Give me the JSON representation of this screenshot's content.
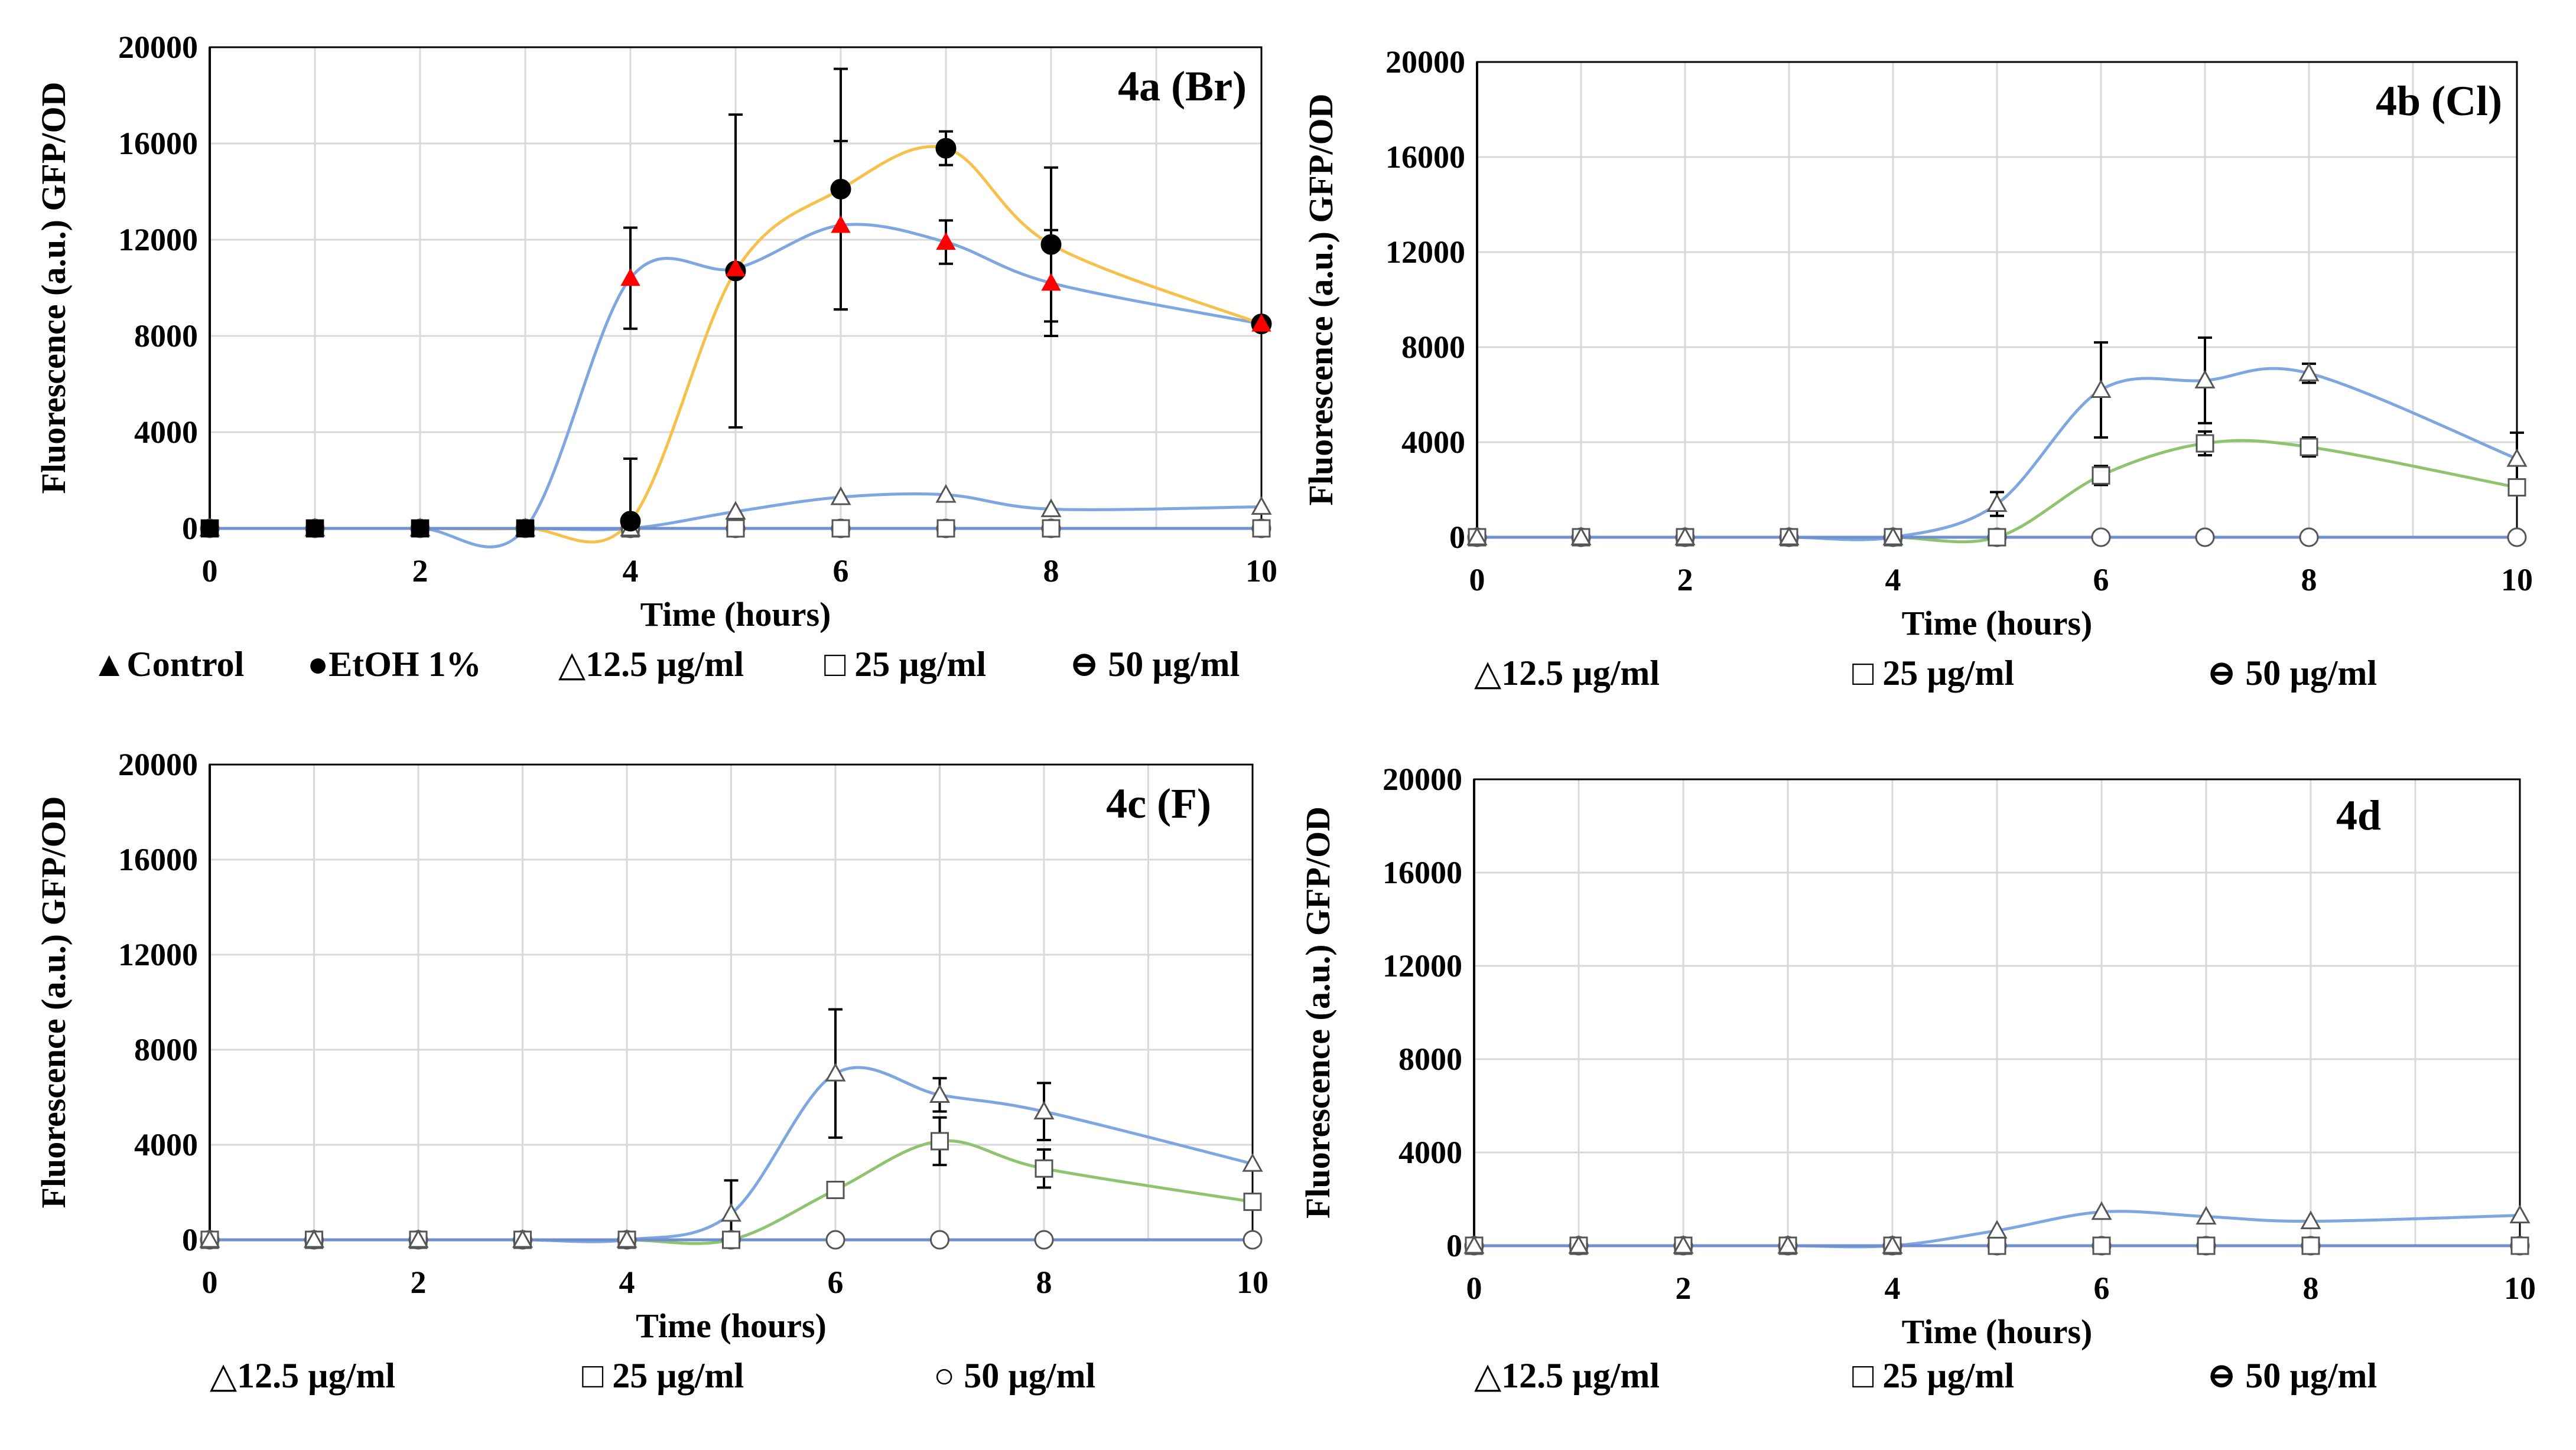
{
  "colors": {
    "control": "#ff0000",
    "ethanol": "#000000",
    "s12_5_line": "#7ea6e0",
    "s25_line": "#8fc46e",
    "s50_line": "#6f8fcf",
    "ethanol_line": "#f7c04a",
    "control_line": "#7ea6e0"
  },
  "chart_data": [
    {
      "type": "line",
      "title": "4a (Br)",
      "xlabel": "Time (hours)",
      "ylabel": "Fluorescence (a.u.) GFP/OD",
      "xlim": [
        0,
        10
      ],
      "ylim": [
        0,
        20000
      ],
      "xticks": [
        "0",
        "2",
        "4",
        "6",
        "8",
        "10"
      ],
      "yticks": [
        "0",
        "4000",
        "8000",
        "12000",
        "16000",
        "20000"
      ],
      "legend": [
        "▲Control",
        "●EtOH 1%",
        "△12.5 µg/ml",
        "□ 25 µg/ml",
        "⊖ 50 µg/ml"
      ],
      "series": [
        {
          "name": "Control",
          "marker": "filled-triangle",
          "color": "#ff0000",
          "line": "#7ea6e0",
          "x": [
            0,
            1,
            2,
            3,
            4,
            5,
            6,
            7,
            8,
            10
          ],
          "values": [
            0,
            0,
            0,
            0,
            10400,
            10800,
            12600,
            11900,
            10200,
            8500
          ],
          "err": [
            0,
            0,
            0,
            0,
            2100,
            0,
            3500,
            900,
            2200,
            0
          ]
        },
        {
          "name": "EtOH 1%",
          "marker": "filled-circle",
          "color": "#000000",
          "line": "#f7c04a",
          "x": [
            0,
            1,
            2,
            3,
            4,
            5,
            6,
            7,
            8,
            10
          ],
          "values": [
            0,
            0,
            0,
            0,
            300,
            10700,
            14100,
            15800,
            11800,
            8500
          ],
          "err": [
            0,
            0,
            0,
            0,
            2600,
            6500,
            5000,
            700,
            3200,
            0
          ]
        },
        {
          "name": "12.5 µg/ml",
          "marker": "triangle",
          "color": "#000000",
          "line": "#7ea6e0",
          "x": [
            0,
            1,
            2,
            3,
            4,
            5,
            6,
            7,
            8,
            10
          ],
          "values": [
            0,
            0,
            0,
            0,
            0,
            700,
            1300,
            1400,
            800,
            900
          ],
          "err": [
            0,
            0,
            0,
            0,
            0,
            0,
            0,
            0,
            0,
            0
          ]
        },
        {
          "name": "25 µg/ml",
          "marker": "square",
          "color": "#000000",
          "line": "#8fc46e",
          "x": [
            0,
            1,
            2,
            3,
            4,
            5,
            6,
            7,
            8,
            10
          ],
          "values": [
            0,
            0,
            0,
            0,
            0,
            0,
            0,
            0,
            0,
            0
          ],
          "err": [
            0,
            0,
            0,
            0,
            0,
            0,
            0,
            0,
            0,
            0
          ]
        },
        {
          "name": "50 µg/ml",
          "marker": "circle",
          "color": "#000000",
          "line": "#6f8fcf",
          "x": [
            0,
            1,
            2,
            3,
            4,
            5,
            6,
            7,
            8,
            10
          ],
          "values": [
            0,
            0,
            0,
            0,
            0,
            0,
            0,
            0,
            0,
            0
          ],
          "err": [
            0,
            0,
            0,
            0,
            0,
            0,
            0,
            0,
            0,
            0
          ]
        }
      ]
    },
    {
      "type": "line",
      "title": "4b (Cl)",
      "xlabel": "Time (hours)",
      "ylabel": "Fluorescence (a.u.) GFP/OD",
      "xlim": [
        0,
        10
      ],
      "ylim": [
        0,
        20000
      ],
      "xticks": [
        "0",
        "2",
        "4",
        "6",
        "8",
        "10"
      ],
      "yticks": [
        "0",
        "4000",
        "8000",
        "12000",
        "16000",
        "20000"
      ],
      "legend": [
        "△12.5 µg/ml",
        "□ 25 µg/ml",
        "⊖ 50 µg/ml"
      ],
      "series": [
        {
          "name": "12.5 µg/ml",
          "marker": "triangle",
          "color": "#000000",
          "line": "#7ea6e0",
          "x": [
            0,
            1,
            2,
            3,
            4,
            5,
            6,
            7,
            8,
            10
          ],
          "values": [
            0,
            0,
            0,
            0,
            0,
            1400,
            6200,
            6600,
            6900,
            3300
          ],
          "err": [
            0,
            0,
            0,
            0,
            0,
            500,
            2000,
            1800,
            400,
            1100
          ]
        },
        {
          "name": "25 µg/ml",
          "marker": "square",
          "color": "#000000",
          "line": "#8fc46e",
          "x": [
            0,
            1,
            2,
            3,
            4,
            5,
            6,
            7,
            8,
            10
          ],
          "values": [
            0,
            0,
            0,
            0,
            0,
            0,
            2600,
            3950,
            3800,
            2100
          ],
          "err": [
            0,
            0,
            0,
            0,
            0,
            0,
            400,
            500,
            400,
            300
          ]
        },
        {
          "name": "50 µg/ml",
          "marker": "circle",
          "color": "#000000",
          "line": "#6f8fcf",
          "x": [
            0,
            1,
            2,
            3,
            4,
            5,
            6,
            7,
            8,
            10
          ],
          "values": [
            0,
            0,
            0,
            0,
            0,
            0,
            0,
            0,
            0,
            0
          ],
          "err": [
            0,
            0,
            0,
            0,
            0,
            0,
            0,
            0,
            0,
            0
          ]
        }
      ]
    },
    {
      "type": "line",
      "title": "4c (F)",
      "xlabel": "Time (hours)",
      "ylabel": "Fluorescence (a.u.) GFP/OD",
      "xlim": [
        0,
        10
      ],
      "ylim": [
        0,
        20000
      ],
      "xticks": [
        "0",
        "2",
        "4",
        "6",
        "8",
        "10"
      ],
      "yticks": [
        "0",
        "4000",
        "8000",
        "12000",
        "16000",
        "20000"
      ],
      "legend": [
        "△12.5 µg/ml",
        "□ 25 µg/ml",
        "○ 50 µg/ml"
      ],
      "series": [
        {
          "name": "12.5 µg/ml",
          "marker": "triangle",
          "color": "#000000",
          "line": "#7ea6e0",
          "x": [
            0,
            1,
            2,
            3,
            4,
            5,
            6,
            7,
            8,
            10
          ],
          "values": [
            0,
            0,
            0,
            0,
            0,
            1100,
            7000,
            6100,
            5400,
            3200
          ],
          "err": [
            0,
            0,
            0,
            0,
            0,
            1400,
            2700,
            700,
            1200,
            0
          ]
        },
        {
          "name": "25 µg/ml",
          "marker": "square",
          "color": "#000000",
          "line": "#8fc46e",
          "x": [
            0,
            1,
            2,
            3,
            4,
            5,
            6,
            7,
            8,
            10
          ],
          "values": [
            0,
            0,
            0,
            0,
            0,
            0,
            2100,
            4150,
            3000,
            1600
          ],
          "err": [
            0,
            0,
            0,
            0,
            0,
            0,
            300,
            1000,
            800,
            0
          ]
        },
        {
          "name": "50 µg/ml",
          "marker": "circle",
          "color": "#000000",
          "line": "#6f8fcf",
          "x": [
            0,
            1,
            2,
            3,
            4,
            5,
            6,
            7,
            8,
            10
          ],
          "values": [
            0,
            0,
            0,
            0,
            0,
            0,
            0,
            0,
            0,
            0
          ],
          "err": [
            0,
            0,
            0,
            0,
            0,
            0,
            0,
            0,
            0,
            0
          ]
        }
      ]
    },
    {
      "type": "line",
      "title": "4d",
      "xlabel": "Time (hours)",
      "ylabel": "Fluorescence (a.u.) GFP/OD",
      "xlim": [
        0,
        10
      ],
      "ylim": [
        0,
        20000
      ],
      "xticks": [
        "0",
        "2",
        "4",
        "6",
        "8",
        "10"
      ],
      "yticks": [
        "0",
        "4000",
        "8000",
        "12000",
        "16000",
        "20000"
      ],
      "legend": [
        "△12.5 µg/ml",
        "□ 25 µg/ml",
        "⊖ 50 µg/ml"
      ],
      "series": [
        {
          "name": "12.5 µg/ml",
          "marker": "triangle",
          "color": "#000000",
          "line": "#7ea6e0",
          "x": [
            0,
            1,
            2,
            3,
            4,
            5,
            6,
            7,
            8,
            10
          ],
          "values": [
            0,
            0,
            0,
            0,
            0,
            650,
            1450,
            1250,
            1050,
            1300
          ],
          "err": [
            0,
            0,
            0,
            0,
            0,
            0,
            0,
            0,
            0,
            0
          ]
        },
        {
          "name": "25 µg/ml",
          "marker": "square",
          "color": "#000000",
          "line": "#8fc46e",
          "x": [
            0,
            1,
            2,
            3,
            4,
            5,
            6,
            7,
            8,
            10
          ],
          "values": [
            0,
            0,
            0,
            0,
            0,
            0,
            0,
            0,
            0,
            0
          ],
          "err": [
            0,
            0,
            0,
            0,
            0,
            0,
            0,
            0,
            0,
            0
          ]
        },
        {
          "name": "50 µg/ml",
          "marker": "circle",
          "color": "#000000",
          "line": "#6f8fcf",
          "x": [
            0,
            1,
            2,
            3,
            4,
            5,
            6,
            7,
            8,
            10
          ],
          "values": [
            0,
            0,
            0,
            0,
            0,
            0,
            0,
            0,
            0,
            0
          ],
          "err": [
            0,
            0,
            0,
            0,
            0,
            0,
            0,
            0,
            0,
            0
          ]
        }
      ]
    }
  ]
}
